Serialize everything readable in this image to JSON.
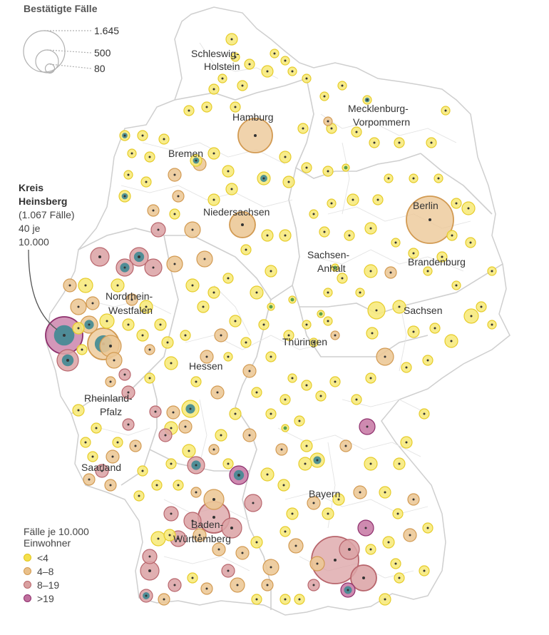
{
  "legend": {
    "size_title": "Bestätigte Fälle",
    "size_values": [
      "1.645",
      "500",
      "80"
    ],
    "color_title_1": "Fälle je 10.000",
    "color_title_2": "Einwohner",
    "color_items": [
      {
        "label": "<4",
        "fill": "#f4e04d",
        "stroke": "#e2c51a"
      },
      {
        "label": "4–8",
        "fill": "#e9c08a",
        "stroke": "#d39a4e"
      },
      {
        "label": "8–19",
        "fill": "#d9a0a0",
        "stroke": "#b9656b"
      },
      {
        "label": ">19",
        "fill": "#c0709e",
        "stroke": "#8f2f6d"
      }
    ]
  },
  "annotation": {
    "line1": "Kreis",
    "line2": "Heinsberg",
    "line3": "(1.067 Fälle)",
    "line4": "40 je",
    "line5": "10.000"
  },
  "states": [
    "Schleswig-",
    "Holstein",
    "Hamburg",
    "Mecklenburg-",
    "Vorpommern",
    "Bremen",
    "Kreis",
    "Berlin",
    "Niedersachsen",
    "Sachsen-",
    "Anhalt",
    "Brandenburg",
    "Nordrhein-",
    "Westfalen",
    "Sachsen",
    "Thüringen",
    "Hessen",
    "Rheinland-",
    "Pfalz",
    "Saarland",
    "Bayern",
    "Baden-",
    "Württemberg"
  ],
  "colors": {
    "yellow": "#f4e04d",
    "orange": "#e9c08a",
    "red": "#d9a0a0",
    "purple": "#c0709e",
    "teal": "#3f8a94",
    "green": "#5aa04a",
    "border": "#d4d4d4"
  }
}
